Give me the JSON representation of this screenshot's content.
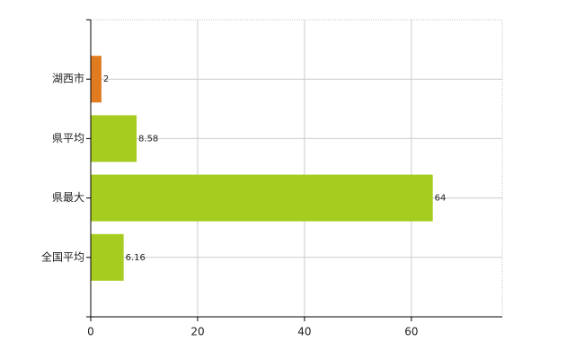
{
  "chart_data": {
    "type": "hbar",
    "categories": [
      "湖西市",
      "県平均",
      "県最大",
      "全国平均"
    ],
    "values": [
      2,
      8.58,
      64,
      6.16
    ],
    "colors": [
      "#e07b20",
      "#a5cc1e",
      "#a5cc1e",
      "#a5cc1e"
    ],
    "xlim": [
      0,
      77
    ],
    "xticks": [
      0,
      20,
      40,
      60
    ],
    "grid": true
  }
}
